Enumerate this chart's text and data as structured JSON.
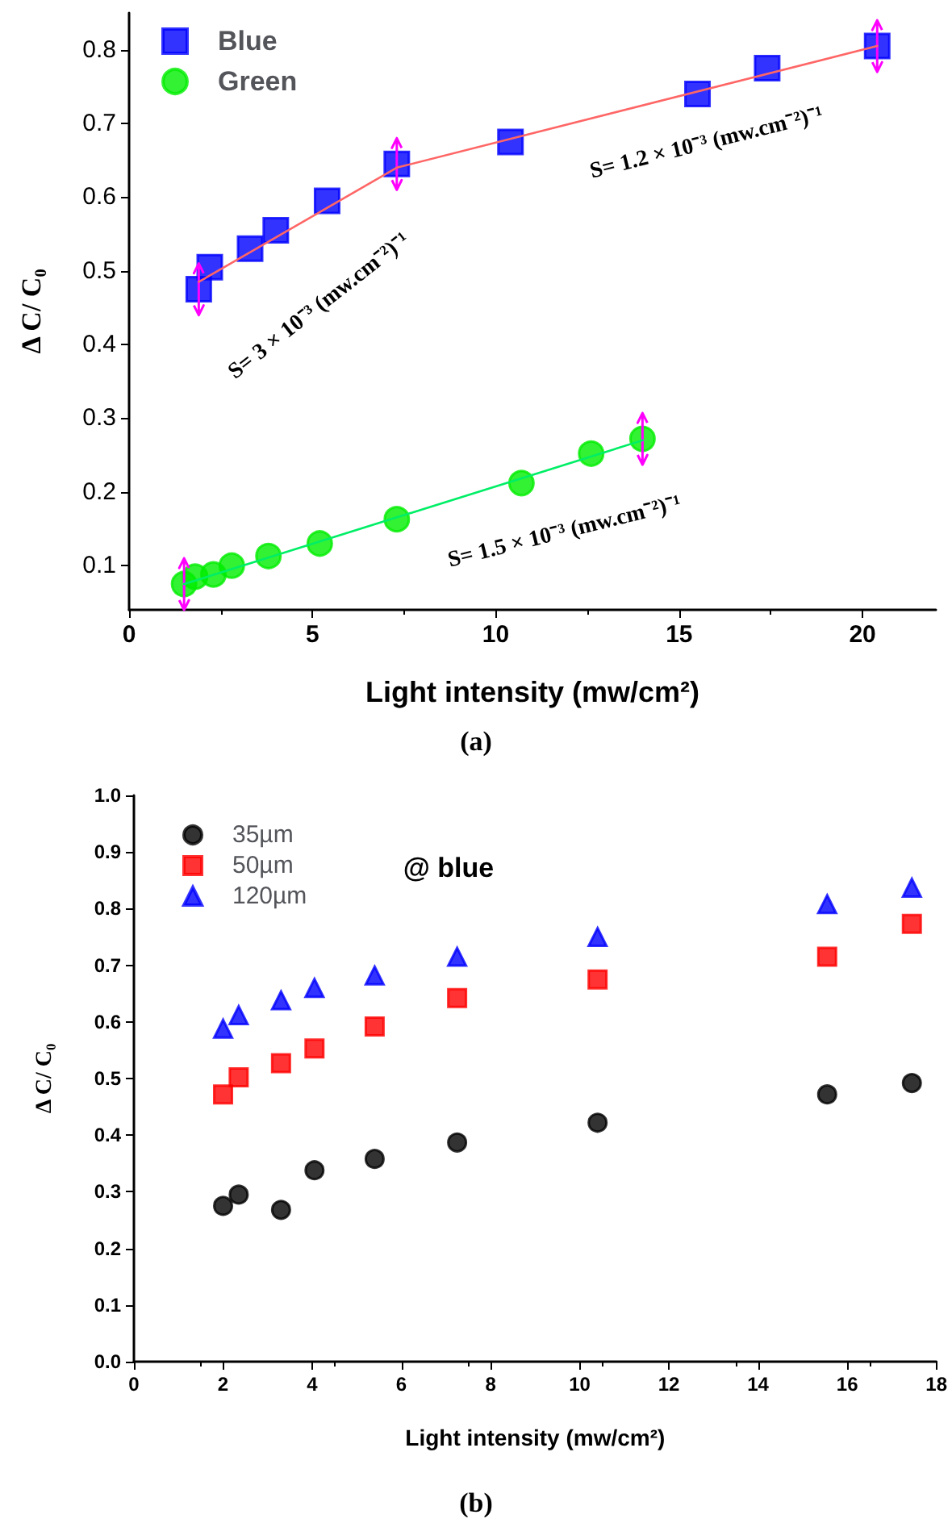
{
  "chart_data": [
    {
      "type": "scatter",
      "xlabel": "Light intensity (mw/cm²)",
      "ylabel": "Δ C/ C₀",
      "xlim": [
        0,
        22
      ],
      "xticks": [
        0,
        5,
        10,
        15,
        20
      ],
      "ylim": [
        0.04,
        0.85
      ],
      "yticks": [
        0.1,
        0.2,
        0.3,
        0.4,
        0.5,
        0.6,
        0.7,
        0.8
      ],
      "grid": false,
      "legend": "top left",
      "series": [
        {
          "name": "Blue",
          "color": "#0000ff",
          "marker": "square",
          "x": [
            1.9,
            2.2,
            3.3,
            4,
            5.4,
            7.3,
            10.4,
            15.5,
            17.4,
            20.4
          ],
          "values": [
            0.475,
            0.505,
            0.53,
            0.555,
            0.595,
            0.645,
            0.675,
            0.74,
            0.775,
            0.805
          ],
          "errors": [
            0.035,
            null,
            null,
            null,
            null,
            0.035,
            null,
            null,
            null,
            0.035
          ]
        },
        {
          "name": "Green",
          "color": "#00ee00",
          "marker": "circle",
          "x": [
            1.5,
            1.8,
            2.3,
            2.8,
            3.8,
            5.2,
            7.3,
            10.7,
            12.6,
            14
          ],
          "values": [
            0.075,
            0.085,
            0.088,
            0.1,
            0.113,
            0.13,
            0.163,
            0.212,
            0.252,
            0.272
          ],
          "errors": [
            0.035,
            null,
            null,
            null,
            null,
            null,
            null,
            null,
            null,
            0.035
          ]
        },
        {
          "type": "line",
          "color": "#ff6666",
          "marker": "none",
          "x": [
            1.9,
            7.3,
            20.4
          ],
          "values": [
            0.485,
            0.64,
            0.805
          ]
        },
        {
          "type": "line",
          "color": "#00ee66",
          "marker": "none",
          "x": [
            1.5,
            14
          ],
          "values": [
            0.075,
            0.27
          ]
        }
      ],
      "annotations": [
        "S= 3 × 10⁻³ (mw.cm⁻²)⁻¹",
        "S= 1.2 × 10⁻³ (mw.cm⁻²)⁻¹",
        "S= 1.5 × 10⁻³ (mw.cm⁻²)⁻¹",
        "(a)"
      ]
    },
    {
      "type": "scatter",
      "xlabel": "Light intensity (mw/cm²)",
      "ylabel": "Δ C/ C₀",
      "xlim": [
        0,
        18
      ],
      "xticks": [
        0,
        2,
        4,
        6,
        8,
        10,
        12,
        14,
        16,
        18
      ],
      "ylim": [
        0,
        1
      ],
      "yticks": [
        {
          "value": 0,
          "label": "0.0"
        },
        0.1,
        0.2,
        0.3,
        0.4,
        0.5,
        0.6,
        0.7,
        0.8,
        0.9,
        {
          "value": 1,
          "label": "1.0"
        }
      ],
      "grid": false,
      "legend": "top left",
      "series": [
        {
          "name": "35µm",
          "color": "#000000",
          "marker": "circle",
          "x": [
            2,
            2.35,
            3.3,
            4.05,
            5.4,
            7.25,
            10.4,
            15.55,
            17.45
          ],
          "values": [
            0.275,
            0.295,
            0.268,
            0.338,
            0.358,
            0.387,
            0.422,
            0.472,
            0.492
          ]
        },
        {
          "name": "50µm",
          "color": "#ff0000",
          "marker": "square",
          "x": [
            2,
            2.35,
            3.3,
            4.05,
            5.4,
            7.25,
            10.4,
            15.55,
            17.45
          ],
          "values": [
            0.472,
            0.502,
            0.527,
            0.553,
            0.592,
            0.642,
            0.675,
            0.715,
            0.773
          ]
        },
        {
          "name": "120µm",
          "color": "#0000ff",
          "marker": "triangle",
          "x": [
            2,
            2.35,
            3.3,
            4.05,
            5.4,
            7.25,
            10.4,
            15.55,
            17.45
          ],
          "values": [
            0.588,
            0.612,
            0.638,
            0.66,
            0.682,
            0.715,
            0.75,
            0.808,
            0.837
          ]
        }
      ],
      "annotations": [
        "@ blue",
        "(b)"
      ]
    }
  ]
}
